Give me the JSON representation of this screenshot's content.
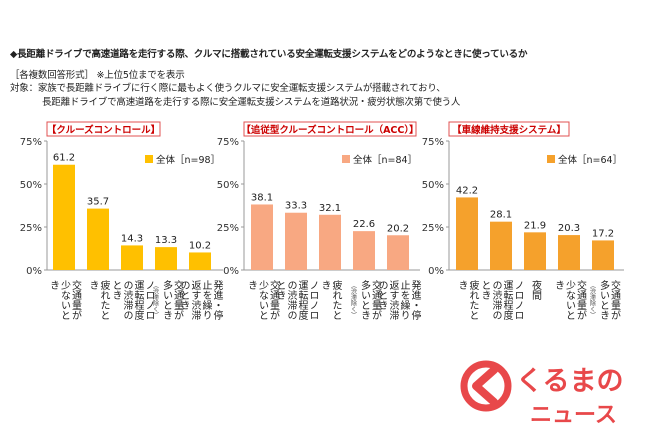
{
  "header": {
    "line1": "◆長距離ドライブで高速道路を走行する際、クルマに搭載されている安全運転支援システムをどのようなときに使っているか",
    "line2": "［各複数回答形式］ ※上位5位までを表示",
    "line3": "対象：家族で長距離ドライブに行く際に最もよく使うクルマに安全運転支援システムが搭載されており、",
    "line4": "長距離ドライブで高速道路を走行する際に安全運転支援システムを道路状況・疲労状態次第で使う人"
  },
  "colors": {
    "cruise": "#FFC000",
    "acc": "#F8A882",
    "lane": "#F5A12C",
    "axis": "#999999",
    "title_border": "#E05050",
    "title_text": "#CC0000",
    "logo": "#E8484A"
  },
  "logo": {
    "line1": "くるまの",
    "line2": "ニュース"
  },
  "chart_data": [
    {
      "type": "bar",
      "title": "【クルーズコントロール】",
      "legend": "全体［n=98］",
      "ylim": [
        0,
        75
      ],
      "yticks": [
        "0%",
        "25%",
        "50%",
        "75%"
      ],
      "categories": [
        "交通量が少ないとき",
        "疲れたとき",
        "ノロノロ運転程度の渋滞のとき",
        "交通量が多いとき",
        "発進・停止を繰り返す渋滞のとき"
      ],
      "subnotes": [
        "",
        "",
        "",
        "（渋滞除く）",
        ""
      ],
      "values": [
        61.2,
        35.7,
        14.3,
        13.3,
        10.2
      ],
      "labels": [
        "61.2",
        "35.7",
        "14.3",
        "13.3",
        "10.2"
      ]
    },
    {
      "type": "bar",
      "title": "【追従型クルーズコントロール（ACC）】",
      "legend": "全体［n=84］",
      "ylim": [
        0,
        75
      ],
      "yticks": [
        "0%",
        "25%",
        "50%",
        "75%"
      ],
      "categories": [
        "交通量が少ないとき",
        "ノロノロ運転程度の渋滞のとき",
        "疲れたとき",
        "交通量が多いとき",
        "発進・停止を繰り返す渋滞のとき"
      ],
      "subnotes": [
        "",
        "",
        "",
        "（渋滞除く）",
        ""
      ],
      "values": [
        38.1,
        33.3,
        32.1,
        22.6,
        20.2
      ],
      "labels": [
        "38.1",
        "33.3",
        "32.1",
        "22.6",
        "20.2"
      ]
    },
    {
      "type": "bar",
      "title": "【車線維持支援システム】",
      "legend": "全体［n=64］",
      "ylim": [
        0,
        75
      ],
      "yticks": [
        "0%",
        "25%",
        "50%",
        "75%"
      ],
      "categories": [
        "疲れたとき",
        "ノロノロ運転程度の渋滞のとき",
        "夜間",
        "交通量が少ないとき",
        "交通量が多いとき"
      ],
      "subnotes": [
        "",
        "",
        "",
        "",
        "（渋滞除く）"
      ],
      "values": [
        42.2,
        28.1,
        21.9,
        20.3,
        17.2
      ],
      "labels": [
        "42.2",
        "28.1",
        "21.9",
        "20.3",
        "17.2"
      ]
    }
  ]
}
